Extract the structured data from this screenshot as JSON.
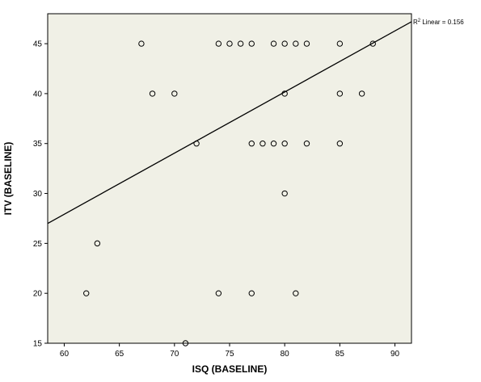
{
  "chart_data": {
    "type": "scatter",
    "title": "",
    "xlabel": "ISQ (BASELINE)",
    "ylabel": "ITV (BASELINE)",
    "xlim": [
      58.5,
      91.5
    ],
    "ylim": [
      15,
      48
    ],
    "x_ticks": [
      60,
      65,
      70,
      75,
      80,
      85,
      90
    ],
    "y_ticks": [
      15,
      20,
      25,
      30,
      35,
      40,
      45
    ],
    "grid": false,
    "legend": "none",
    "colors": {
      "plot_background": "#f0f0e6",
      "frame": "#000000",
      "marker_stroke": "#000000",
      "fit_line": "#000000"
    },
    "points": [
      {
        "x": 62,
        "y": 20
      },
      {
        "x": 63,
        "y": 25
      },
      {
        "x": 67,
        "y": 45
      },
      {
        "x": 68,
        "y": 40
      },
      {
        "x": 70,
        "y": 40
      },
      {
        "x": 71,
        "y": 15
      },
      {
        "x": 72,
        "y": 35
      },
      {
        "x": 74,
        "y": 45
      },
      {
        "x": 74,
        "y": 20
      },
      {
        "x": 75,
        "y": 45
      },
      {
        "x": 76,
        "y": 45
      },
      {
        "x": 77,
        "y": 45
      },
      {
        "x": 77,
        "y": 35
      },
      {
        "x": 77,
        "y": 20
      },
      {
        "x": 78,
        "y": 35
      },
      {
        "x": 79,
        "y": 45
      },
      {
        "x": 79,
        "y": 35
      },
      {
        "x": 80,
        "y": 45
      },
      {
        "x": 80,
        "y": 40
      },
      {
        "x": 80,
        "y": 35
      },
      {
        "x": 80,
        "y": 30
      },
      {
        "x": 81,
        "y": 45
      },
      {
        "x": 81,
        "y": 20
      },
      {
        "x": 82,
        "y": 45
      },
      {
        "x": 82,
        "y": 35
      },
      {
        "x": 85,
        "y": 45
      },
      {
        "x": 85,
        "y": 40
      },
      {
        "x": 85,
        "y": 35
      },
      {
        "x": 87,
        "y": 40
      },
      {
        "x": 88,
        "y": 45
      }
    ],
    "fit_line": {
      "type": "linear",
      "start": {
        "x": 58.5,
        "y": 27
      },
      "end": {
        "x": 91.5,
        "y": 47.2
      }
    },
    "annotation": {
      "prefix": "R",
      "superscript": "2",
      "suffix": " Linear = 0.156"
    }
  }
}
